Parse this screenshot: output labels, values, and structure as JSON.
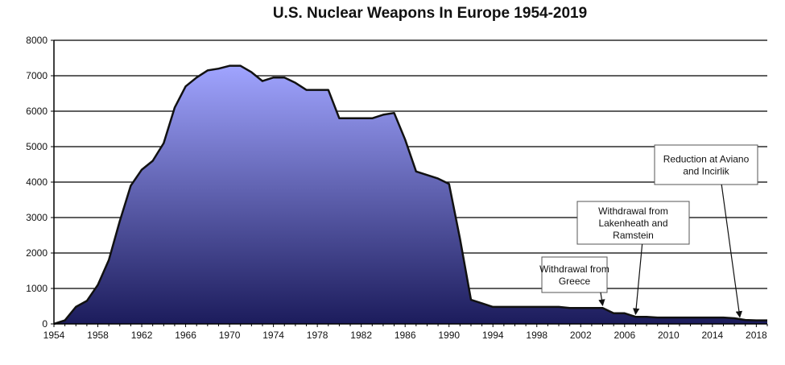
{
  "chart_data": {
    "type": "area",
    "title": "U.S. Nuclear Weapons In Europe 1954-2019",
    "xlabel": "",
    "ylabel": "",
    "xlim": [
      1954,
      2019
    ],
    "ylim": [
      0,
      8000
    ],
    "yticks": [
      0,
      1000,
      2000,
      3000,
      4000,
      5000,
      6000,
      7000,
      8000
    ],
    "xticks": [
      1954,
      1958,
      1962,
      1966,
      1970,
      1974,
      1978,
      1982,
      1986,
      1990,
      1994,
      1998,
      2002,
      2006,
      2010,
      2014,
      2018
    ],
    "grid": "horizontal",
    "fill_gradient": [
      "#a0a4ff",
      "#1c1c5c"
    ],
    "line_color": "#111111",
    "series": [
      {
        "x": [
          1954,
          1955,
          1956,
          1957,
          1958,
          1959,
          1960,
          1961,
          1962,
          1963,
          1964,
          1965,
          1966,
          1967,
          1968,
          1969,
          1970,
          1971,
          1972,
          1973,
          1974,
          1975,
          1976,
          1977,
          1978,
          1979,
          1980,
          1981,
          1982,
          1983,
          1984,
          1985,
          1986,
          1987,
          1988,
          1989,
          1990,
          1991,
          1992,
          1993,
          1994,
          1995,
          1996,
          1997,
          1998,
          1999,
          2000,
          2001,
          2002,
          2003,
          2004,
          2005,
          2006,
          2007,
          2008,
          2009,
          2010,
          2011,
          2012,
          2013,
          2014,
          2015,
          2016,
          2017,
          2018,
          2019
        ],
        "values": [
          0,
          100,
          480,
          650,
          1100,
          1800,
          2900,
          3900,
          4350,
          4600,
          5100,
          6100,
          6700,
          6950,
          7150,
          7200,
          7280,
          7280,
          7100,
          6850,
          6950,
          6950,
          6800,
          6600,
          6600,
          6600,
          5800,
          5800,
          5800,
          5800,
          5900,
          5950,
          5200,
          4300,
          4200,
          4100,
          3950,
          2400,
          680,
          580,
          480,
          480,
          480,
          480,
          480,
          480,
          480,
          450,
          450,
          450,
          450,
          300,
          300,
          200,
          200,
          180,
          180,
          180,
          180,
          180,
          180,
          180,
          160,
          110,
          100,
          100
        ]
      }
    ],
    "annotations": [
      {
        "lines": [
          "Withdrawal from",
          "Greece"
        ],
        "year": 2004,
        "value": 450
      },
      {
        "lines": [
          "Withdrawal from",
          "Lakenheath and",
          "Ramstein"
        ],
        "year": 2007,
        "value": 200
      },
      {
        "lines": [
          "Reduction at Aviano",
          "and Incirlik"
        ],
        "year": 2016.5,
        "value": 120
      }
    ]
  }
}
